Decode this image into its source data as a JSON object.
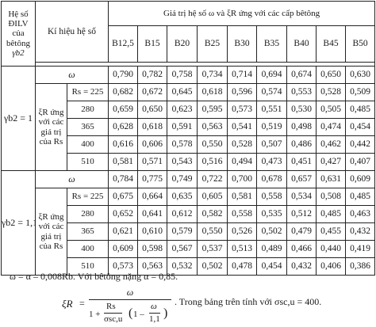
{
  "table": {
    "header": {
      "group_col": [
        "Hệ số",
        "ĐILV",
        "của",
        "bêtông",
        "γb2"
      ],
      "symbol_col": "Kí hiệu hệ số",
      "span_title": "Giá trị hệ số ω và ξR ứng với các cấp bêtông",
      "grades": [
        "B12,5",
        "B15",
        "B20",
        "B25",
        "B30",
        "B35",
        "B40",
        "B45",
        "B50"
      ]
    },
    "groups": [
      {
        "label": "γb2 = 1",
        "omega_label": "ω",
        "omega": [
          "0,790",
          "0,782",
          "0,758",
          "0,734",
          "0,714",
          "0,694",
          "0,674",
          "0,650",
          "0,630"
        ],
        "xi_label": [
          "ξR ứng",
          "với các",
          "giá trị",
          "của Rs"
        ],
        "rows": [
          {
            "rs": "Rs = 225",
            "values": [
              "0,682",
              "0,672",
              "0,645",
              "0,618",
              "0,596",
              "0,574",
              "0,553",
              "0,528",
              "0,509"
            ]
          },
          {
            "rs": "280",
            "values": [
              "0,659",
              "0,650",
              "0,623",
              "0,595",
              "0,573",
              "0,551",
              "0,530",
              "0,505",
              "0,485"
            ]
          },
          {
            "rs": "365",
            "values": [
              "0,628",
              "0,618",
              "0,591",
              "0,563",
              "0,541",
              "0,519",
              "0,498",
              "0,474",
              "0,454"
            ]
          },
          {
            "rs": "400",
            "values": [
              "0,616",
              "0,606",
              "0,578",
              "0,550",
              "0,528",
              "0,507",
              "0,486",
              "0,462",
              "0,442"
            ]
          },
          {
            "rs": "510",
            "values": [
              "0,581",
              "0,571",
              "0,543",
              "0,516",
              "0,494",
              "0,473",
              "0,451",
              "0,427",
              "0,407"
            ]
          }
        ]
      },
      {
        "label": "γb2 = 1,1",
        "omega_label": "ω",
        "omega": [
          "0,784",
          "0,775",
          "0,749",
          "0,722",
          "0,700",
          "0,678",
          "0,657",
          "0,631",
          "0,609"
        ],
        "xi_label": [
          "ξR ứng",
          "với các",
          "giá trị",
          "của Rs"
        ],
        "rows": [
          {
            "rs": "Rs = 225",
            "values": [
              "0,675",
              "0,664",
              "0,635",
              "0,605",
              "0,581",
              "0,558",
              "0,534",
              "0,508",
              "0,485"
            ]
          },
          {
            "rs": "280",
            "values": [
              "0,652",
              "0,641",
              "0,612",
              "0,582",
              "0,558",
              "0,535",
              "0,512",
              "0,485",
              "0,463"
            ]
          },
          {
            "rs": "365",
            "values": [
              "0,621",
              "0,610",
              "0,579",
              "0,550",
              "0,526",
              "0,502",
              "0,479",
              "0,455",
              "0,432"
            ]
          },
          {
            "rs": "400",
            "values": [
              "0,609",
              "0,598",
              "0,567",
              "0,537",
              "0,513",
              "0,489",
              "0,466",
              "0,440",
              "0,419"
            ]
          },
          {
            "rs": "510",
            "values": [
              "0,573",
              "0,563",
              "0,532",
              "0,502",
              "0,478",
              "0,454",
              "0,432",
              "0,406",
              "0,386"
            ]
          }
        ]
      }
    ]
  },
  "notes": {
    "line1": "ω = α – 0,008Rb. Với bêtông nặng α = 0,85.",
    "formula": {
      "lhs": "ξR",
      "eq": "=",
      "numerator": "ω",
      "den_one": "1 +",
      "den_rs": "Rs",
      "den_sigma": "σsc,u",
      "den_paren_l": "(",
      "den_paren_r": ")",
      "den_one2": "1 –",
      "den_omega": "ω",
      "den_11": "1,1",
      "tail": ". Trong bảng trên tính với σsc,u = 400."
    }
  }
}
